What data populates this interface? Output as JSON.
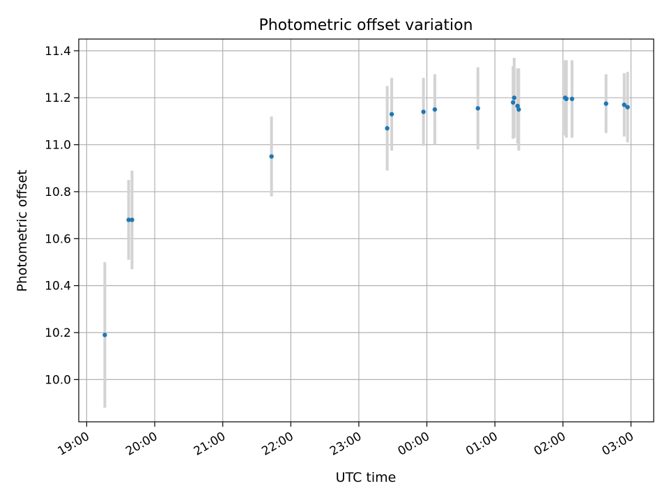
{
  "chart_data": {
    "type": "scatter",
    "title": "Photometric offset variation",
    "xlabel": "UTC time",
    "ylabel": "Photometric offset",
    "x_is_time": true,
    "xlim": [
      "18:53",
      "03:20"
    ],
    "ylim": [
      9.82,
      11.45
    ],
    "grid": true,
    "x_ticks": [
      "19:00",
      "20:00",
      "21:00",
      "22:00",
      "23:00",
      "00:00",
      "01:00",
      "02:00",
      "03:00"
    ],
    "y_ticks": [
      10.0,
      10.2,
      10.4,
      10.6,
      10.8,
      11.0,
      11.2,
      11.4
    ],
    "y_tick_labels": [
      "10.0",
      "10.2",
      "10.4",
      "10.6",
      "10.8",
      "11.0",
      "11.2",
      "11.4"
    ],
    "colors": {
      "point": "#1f77b4",
      "errorbar": "#d3d3d3",
      "grid": "#b0b0b0"
    },
    "points": [
      {
        "x": "19:16",
        "y": 10.19,
        "yerr": 0.31
      },
      {
        "x": "19:37",
        "y": 10.68,
        "yerr": 0.17
      },
      {
        "x": "19:40",
        "y": 10.68,
        "yerr": 0.21
      },
      {
        "x": "21:43",
        "y": 10.95,
        "yerr": 0.17
      },
      {
        "x": "23:25",
        "y": 11.07,
        "yerr": 0.18
      },
      {
        "x": "23:29",
        "y": 11.13,
        "yerr": 0.155
      },
      {
        "x": "23:57",
        "y": 11.14,
        "yerr": 0.145
      },
      {
        "x": "00:07",
        "y": 11.15,
        "yerr": 0.15
      },
      {
        "x": "00:45",
        "y": 11.155,
        "yerr": 0.175
      },
      {
        "x": "01:16",
        "y": 11.18,
        "yerr": 0.155
      },
      {
        "x": "01:17",
        "y": 11.2,
        "yerr": 0.17
      },
      {
        "x": "01:20",
        "y": 11.165,
        "yerr": 0.16
      },
      {
        "x": "01:21",
        "y": 11.15,
        "yerr": 0.175
      },
      {
        "x": "02:02",
        "y": 11.2,
        "yerr": 0.16
      },
      {
        "x": "02:03",
        "y": 11.195,
        "yerr": 0.165
      },
      {
        "x": "02:08",
        "y": 11.195,
        "yerr": 0.165
      },
      {
        "x": "02:38",
        "y": 11.175,
        "yerr": 0.125
      },
      {
        "x": "02:54",
        "y": 11.17,
        "yerr": 0.135
      },
      {
        "x": "02:57",
        "y": 11.16,
        "yerr": 0.15
      }
    ]
  }
}
